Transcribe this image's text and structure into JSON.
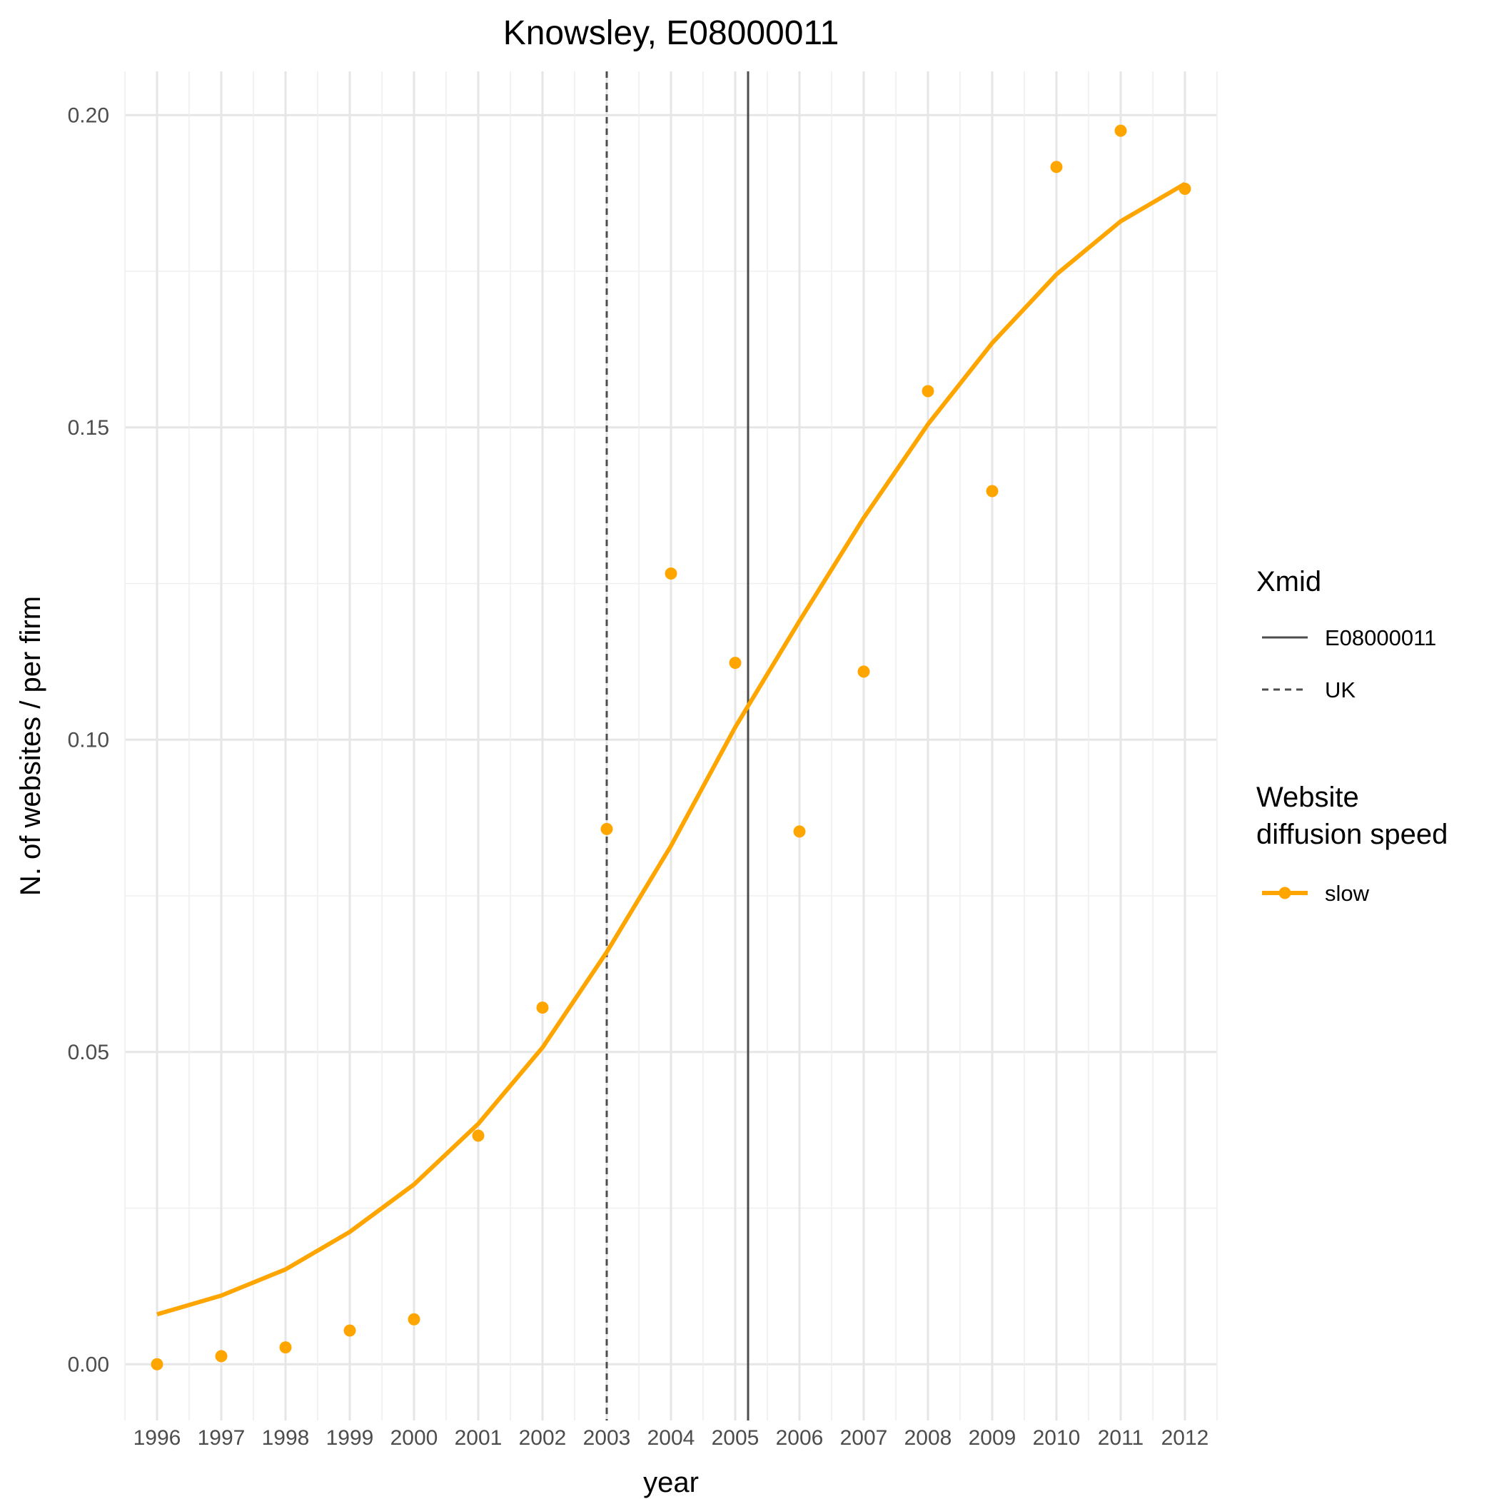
{
  "chart_data": {
    "type": "line",
    "title": "Knowsley, E08000011",
    "xlabel": "year",
    "ylabel": "N. of websites / per firm",
    "x": [
      1996,
      1997,
      1998,
      1999,
      2000,
      2001,
      2002,
      2003,
      2004,
      2005,
      2006,
      2007,
      2008,
      2009,
      2010,
      2011,
      2012
    ],
    "x_tick_labels": [
      "1996",
      "1997",
      "1998",
      "1999",
      "2000",
      "2001",
      "2002",
      "2003",
      "2004",
      "2005",
      "2006",
      "2007",
      "2008",
      "2009",
      "2010",
      "2011",
      "2012"
    ],
    "y_ticks": [
      0.0,
      0.05,
      0.1,
      0.15,
      0.2
    ],
    "y_tick_labels": [
      "0.00",
      "0.05",
      "0.10",
      "0.15",
      "0.20"
    ],
    "xlim": [
      1995.5,
      2012.5
    ],
    "ylim": [
      -0.009,
      0.207
    ],
    "grid": true,
    "series": [
      {
        "name": "slow",
        "color": "#FFA500",
        "points": [
          0.0,
          0.0013,
          0.0027,
          0.0054,
          0.0072,
          0.0366,
          0.0571,
          0.0857,
          0.1266,
          0.1123,
          0.0853,
          0.1109,
          0.1558,
          0.1398,
          0.1917,
          0.1975,
          0.1882
        ],
        "fitted": [
          0.008,
          0.011,
          0.0152,
          0.0212,
          0.0288,
          0.0385,
          0.0507,
          0.066,
          0.083,
          0.102,
          0.119,
          0.1355,
          0.1505,
          0.1635,
          0.1745,
          0.183,
          0.189
        ]
      }
    ],
    "xmid_lines": [
      {
        "name": "E08000011",
        "x": 2005.2,
        "style": "solid",
        "color": "#4d4d4d"
      },
      {
        "name": "UK",
        "x": 2003.0,
        "style": "dashed",
        "color": "#4d4d4d"
      }
    ],
    "legend": {
      "placement": "right",
      "groups": [
        {
          "title_lines": [
            "Xmid"
          ],
          "entries": [
            "E08000011",
            "UK"
          ]
        },
        {
          "title_lines": [
            "Website",
            "diffusion speed"
          ],
          "entries": [
            "slow"
          ]
        }
      ]
    }
  }
}
